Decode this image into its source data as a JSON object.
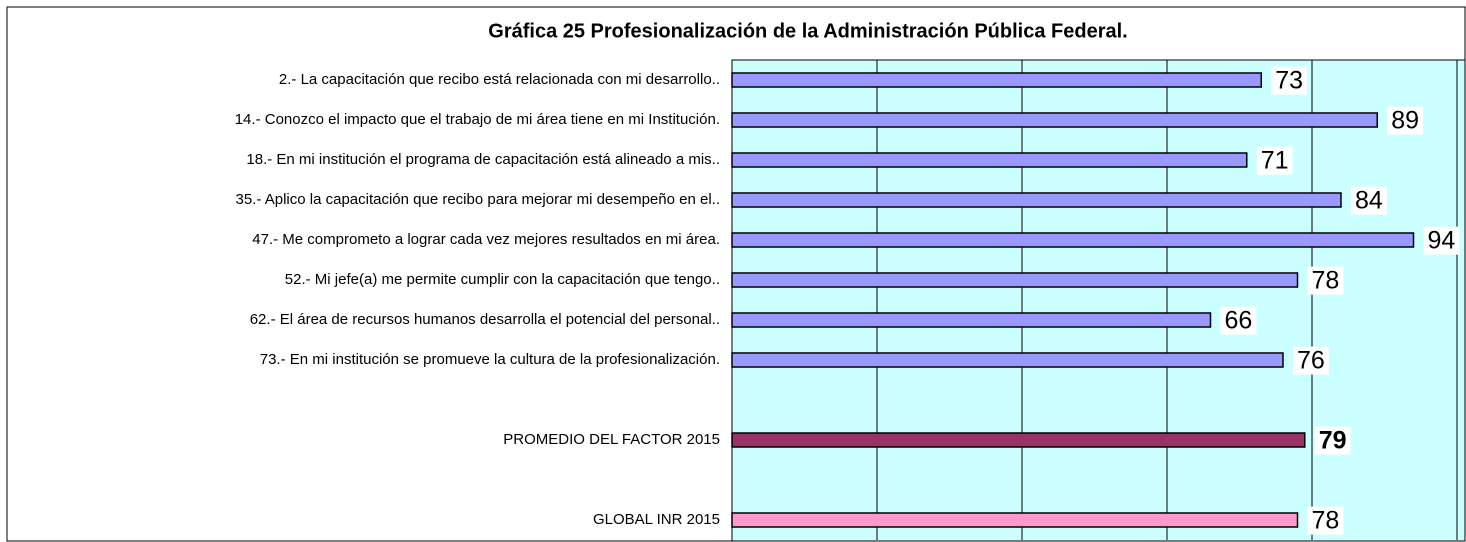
{
  "chart_data": {
    "type": "hbar",
    "title": "Gráfica 25 Profesionalización de la Administración Pública Federal.",
    "categories": [
      "2.- La capacitación que recibo está relacionada con mi desarrollo..",
      "14.- Conozco el impacto que el trabajo de mi área tiene en mi Institución.",
      "18.- En mi institución el programa de capacitación está alineado a mis..",
      "35.- Aplico la capacitación que recibo para mejorar mi desempeño en el..",
      "47.- Me comprometo a lograr cada vez mejores resultados en mi área.",
      "52.- Mi jefe(a) me permite cumplir con la capacitación que tengo..",
      "62.- El área de recursos humanos desarrolla el potencial del personal..",
      "73.- En mi institución se promueve la cultura de la profesionalización.",
      null,
      "PROMEDIO DEL FACTOR   2015",
      null,
      "GLOBAL INR  2015"
    ],
    "values": [
      73,
      89,
      71,
      84,
      94,
      78,
      66,
      76,
      null,
      79,
      null,
      78
    ],
    "colors": [
      "#9999ff",
      "#9999ff",
      "#9999ff",
      "#9999ff",
      "#9999ff",
      "#9999ff",
      "#9999ff",
      "#9999ff",
      null,
      "#993366",
      null,
      "#ff99cc"
    ],
    "bold_values": [
      false,
      false,
      false,
      false,
      false,
      false,
      false,
      false,
      null,
      true,
      null,
      false
    ],
    "xlim": [
      0,
      100
    ],
    "xticks": [
      0,
      20,
      40,
      60,
      80,
      100
    ],
    "grid": true,
    "plot_background": "#ccffff"
  }
}
